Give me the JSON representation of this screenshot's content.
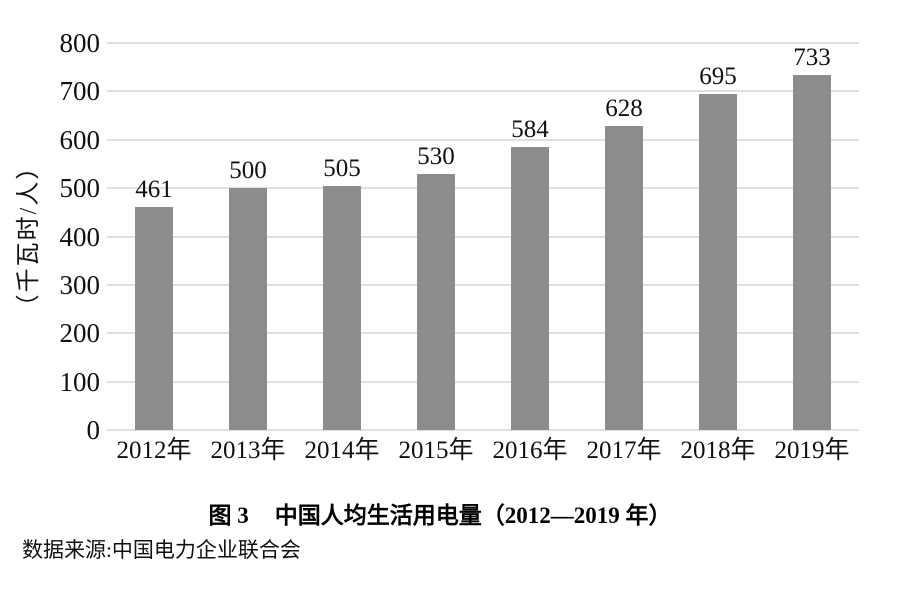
{
  "chart_data": {
    "type": "bar",
    "title": "图 3  中国人均生活用电量（2012—2019 年）",
    "categories": [
      "2012年",
      "2013年",
      "2014年",
      "2015年",
      "2016年",
      "2017年",
      "2018年",
      "2019年"
    ],
    "values": [
      461,
      500,
      505,
      530,
      584,
      628,
      695,
      733
    ],
    "xlabel": "",
    "ylabel": "（千瓦时/人）",
    "ylim": [
      0,
      800
    ],
    "ytick_step": 100,
    "yticks": [
      0,
      100,
      200,
      300,
      400,
      500,
      600,
      700,
      800
    ],
    "grid": true,
    "legend_position": "none",
    "bar_color": "#8c8c8c",
    "gridline_color": "#e0e0e0",
    "value_labels_shown": true
  },
  "caption": {
    "figure_label": "图 3",
    "title": "中国人均生活用电量（2012—2019 年）"
  },
  "source": {
    "text": "数据来源:中国电力企业联合会"
  }
}
